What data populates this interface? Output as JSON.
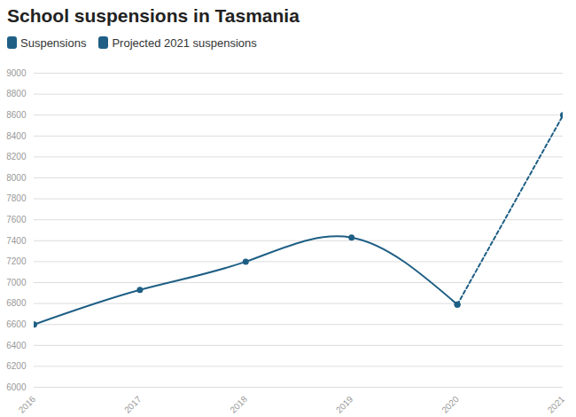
{
  "chart_data": {
    "type": "line",
    "title": "School suspensions in Tasmania",
    "x": [
      2016,
      2017,
      2018,
      2019,
      2020,
      2021
    ],
    "series": [
      {
        "name": "Suspensions",
        "color": "#1f5f85",
        "marker": "circle",
        "line_style": "solid",
        "values": [
          6600,
          6930,
          7200,
          7430,
          6790,
          null
        ]
      },
      {
        "name": "Projected 2021 suspensions",
        "color": "#1f5f85",
        "marker": "circle",
        "line_style": "dashed",
        "values": [
          null,
          null,
          null,
          null,
          6790,
          8600
        ]
      }
    ],
    "xlim": [
      2016,
      2021
    ],
    "xticks": [
      2016,
      2017,
      2018,
      2019,
      2020,
      2021
    ],
    "ylim": [
      6000,
      9000
    ],
    "yticks": [
      6000,
      6200,
      6400,
      6600,
      6800,
      7000,
      7200,
      7400,
      7600,
      7800,
      8000,
      8200,
      8400,
      8600,
      8800,
      9000
    ],
    "grid": true,
    "legend": "top-left"
  }
}
